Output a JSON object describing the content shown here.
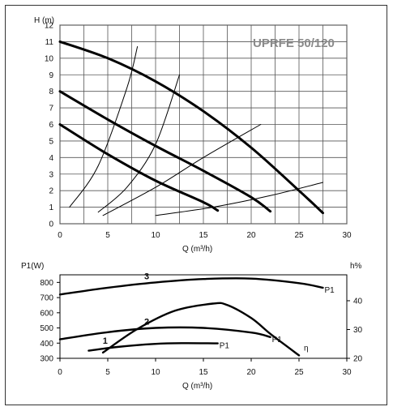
{
  "chart_data": [
    {
      "type": "line",
      "title": "UPRFE 50/120",
      "xlabel": "Q (m³/h)",
      "ylabel": "H (m)",
      "xlim": [
        0,
        30
      ],
      "ylim": [
        0,
        12
      ],
      "xticks": [
        0,
        5,
        10,
        15,
        20,
        25,
        30
      ],
      "yticks": [
        0,
        1,
        2,
        3,
        4,
        5,
        6,
        7,
        8,
        9,
        10,
        11,
        12
      ],
      "grid": true,
      "series": [
        {
          "style": "thick",
          "x": [
            0,
            5,
            10,
            15,
            20,
            25,
            27.5
          ],
          "y": [
            11,
            10,
            8.6,
            6.8,
            4.6,
            2,
            0.65
          ]
        },
        {
          "style": "thick",
          "x": [
            0,
            5,
            10,
            15,
            20,
            22
          ],
          "y": [
            8,
            6.3,
            4.7,
            3.2,
            1.6,
            0.75
          ]
        },
        {
          "style": "thick",
          "x": [
            0,
            5,
            10,
            15,
            16.5
          ],
          "y": [
            6,
            4.2,
            2.6,
            1.3,
            0.8
          ]
        },
        {
          "style": "thin",
          "x": [
            1,
            4,
            7,
            8.1
          ],
          "y": [
            1,
            3.5,
            8.2,
            10.7
          ]
        },
        {
          "style": "thin",
          "x": [
            4,
            7,
            10,
            12.5
          ],
          "y": [
            0.7,
            2.2,
            4.8,
            9
          ]
        },
        {
          "style": "thin",
          "x": [
            4.5,
            10,
            15,
            21
          ],
          "y": [
            0.5,
            2.2,
            4,
            6
          ]
        },
        {
          "style": "thin",
          "x": [
            10,
            16,
            22,
            27.5
          ],
          "y": [
            0.5,
            1,
            1.7,
            2.5
          ]
        }
      ]
    },
    {
      "type": "line",
      "ylabel": "P1(W)",
      "y2label": "h%",
      "xlabel": "Q (m³/h)",
      "xlim": [
        0,
        30
      ],
      "ylim": [
        300,
        850
      ],
      "y2lim": [
        20,
        49
      ],
      "xticks": [
        0,
        5,
        10,
        15,
        20,
        25,
        30
      ],
      "yticks": [
        300,
        400,
        500,
        600,
        700,
        800
      ],
      "y2ticks": [
        20,
        30,
        40
      ],
      "grid": false,
      "series": [
        {
          "name": "P1",
          "label": "3",
          "axis": "left",
          "x": [
            0,
            5,
            10,
            15,
            20,
            25,
            27.5
          ],
          "y": [
            720,
            765,
            800,
            822,
            825,
            795,
            765
          ]
        },
        {
          "name": "P1",
          "label": "2",
          "axis": "left",
          "x": [
            0,
            5,
            10,
            15,
            20,
            22
          ],
          "y": [
            425,
            472,
            500,
            500,
            470,
            440
          ]
        },
        {
          "name": "P1",
          "label": "1",
          "axis": "left",
          "x": [
            3,
            6,
            10,
            13,
            16.5
          ],
          "y": [
            350,
            375,
            395,
            400,
            398
          ]
        },
        {
          "name": "η",
          "axis": "right",
          "x": [
            4.5,
            8,
            12,
            16,
            17.5,
            20,
            22,
            24,
            25
          ],
          "y": [
            22,
            30,
            36.5,
            39,
            38.5,
            34,
            28.5,
            23.5,
            21
          ]
        }
      ]
    }
  ]
}
